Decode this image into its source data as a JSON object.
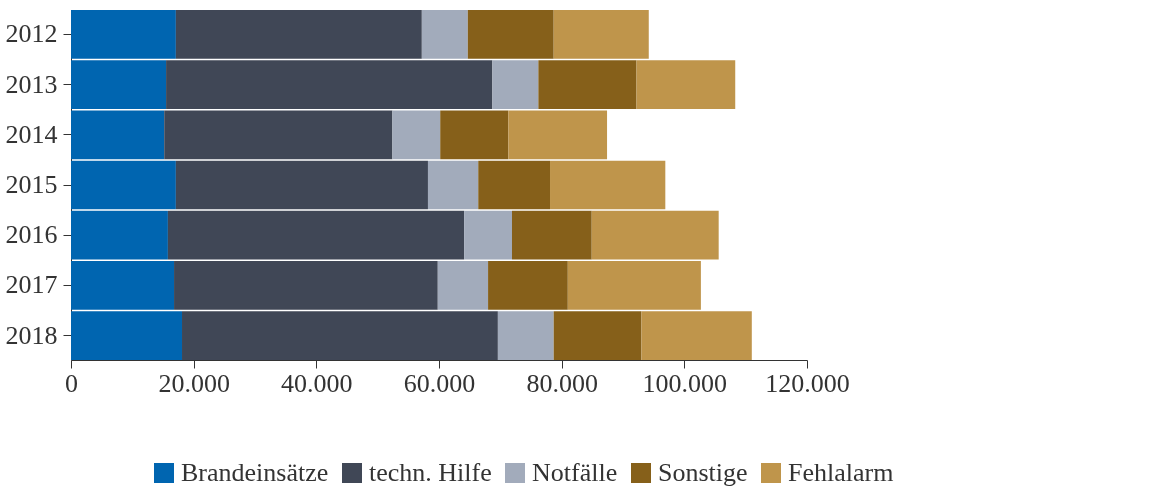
{
  "chart_data": {
    "type": "bar",
    "orientation": "horizontal",
    "stacked": true,
    "categories": [
      "2012",
      "2013",
      "2014",
      "2015",
      "2016",
      "2017",
      "2018"
    ],
    "series": [
      {
        "name": "Brandeinsätze",
        "color": "#0065b0",
        "values": [
          17100,
          15500,
          15200,
          17100,
          15800,
          16800,
          18100
        ]
      },
      {
        "name": "techn. Hilfe",
        "color": "#404756",
        "values": [
          40100,
          53200,
          37200,
          41100,
          48300,
          43000,
          51500
        ]
      },
      {
        "name": "Notfälle",
        "color": "#a2abbb",
        "values": [
          7500,
          7500,
          7800,
          8200,
          7800,
          8200,
          9100
        ]
      },
      {
        "name": "Sonstige",
        "color": "#86601a",
        "values": [
          14000,
          16000,
          11100,
          11700,
          13000,
          13000,
          14300
        ]
      },
      {
        "name": "Fehlalarm",
        "color": "#bf954b",
        "values": [
          15500,
          16100,
          16100,
          18800,
          20700,
          21700,
          18000
        ]
      }
    ],
    "xlim": [
      0,
      120000
    ],
    "xticks": [
      {
        "value": 0,
        "label": "0"
      },
      {
        "value": 20000,
        "label": "20.000"
      },
      {
        "value": 40000,
        "label": "40.000"
      },
      {
        "value": 60000,
        "label": "60.000"
      },
      {
        "value": 80000,
        "label": "80.000"
      },
      {
        "value": 100000,
        "label": "100.000"
      },
      {
        "value": 120000,
        "label": "120.000"
      }
    ],
    "grid": false,
    "legend": "bottom right"
  }
}
